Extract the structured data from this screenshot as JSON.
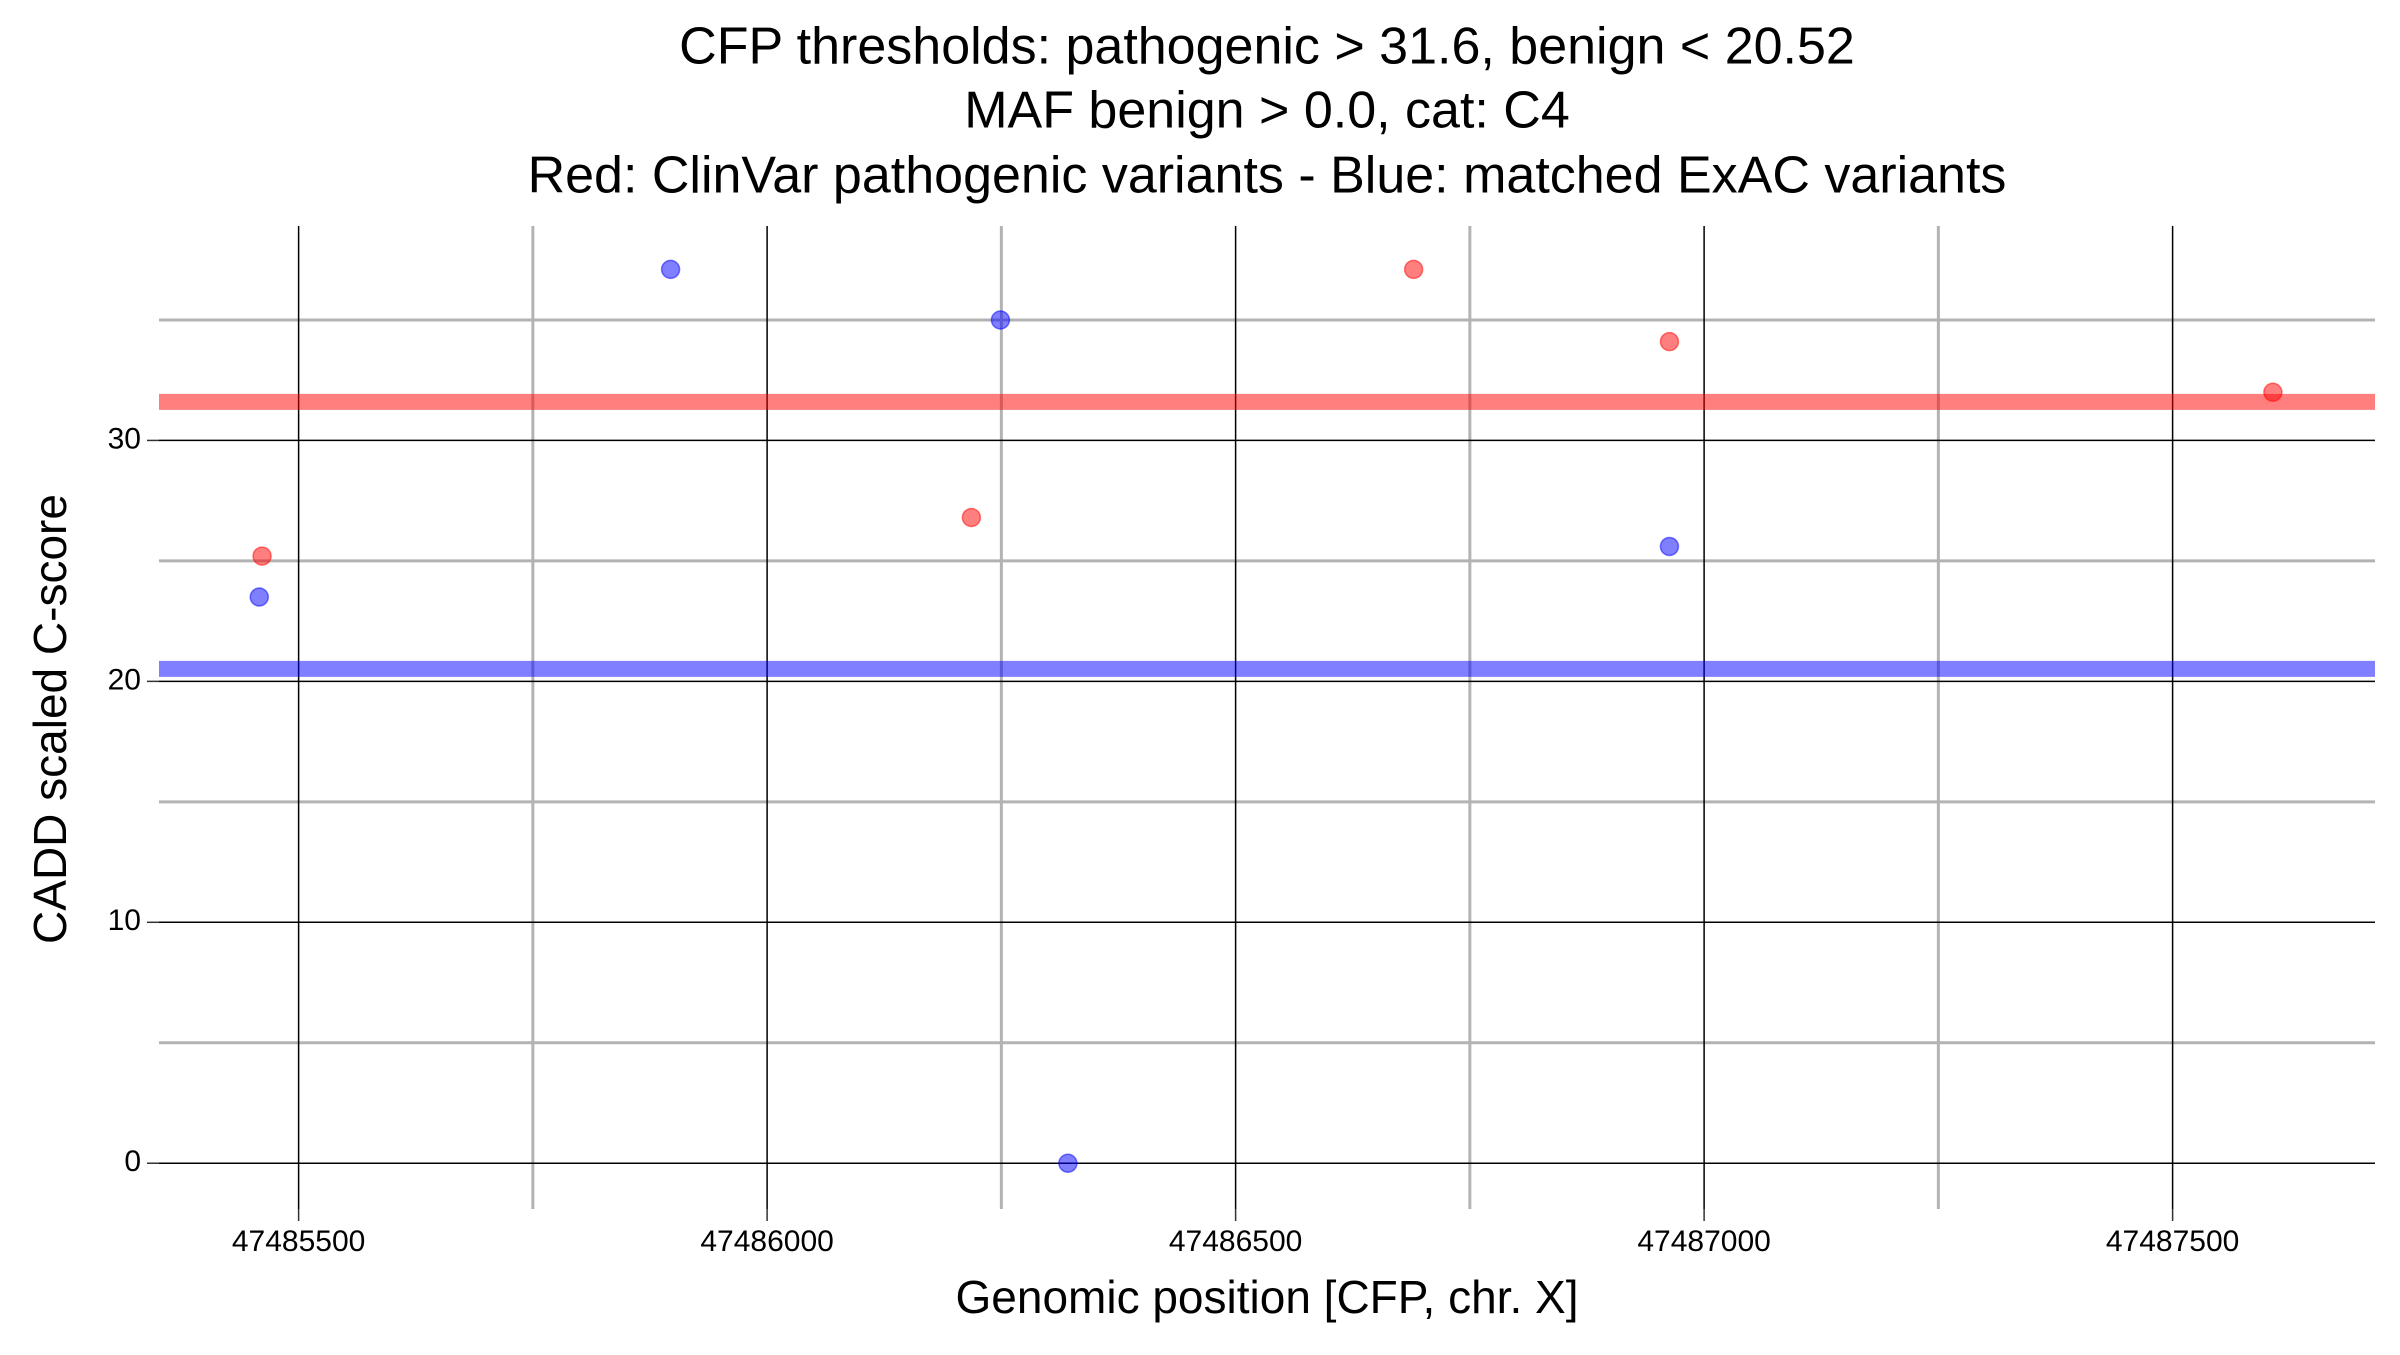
{
  "chart_data": {
    "type": "scatter",
    "title": [
      "CFP thresholds: pathogenic > 31.6, benign < 20.52",
      "MAF benign > 0.0, cat: C4",
      "Red: ClinVar pathogenic variants - Blue: matched ExAC variants"
    ],
    "x_label": "Genomic position [CFP, chr. X]",
    "y_label": "CADD scaled C-score",
    "xlim": [
      47485351,
      47487716
    ],
    "ylim": [
      -1.9,
      38.9
    ],
    "xticks": [
      47485500,
      47486000,
      47486500,
      47487000,
      47487500
    ],
    "yticks": [
      0,
      10,
      20,
      30
    ],
    "x_minor_ticks": [
      47485750,
      47486250,
      47486750,
      47487250
    ],
    "y_minor_ticks": [
      5,
      15,
      25,
      35
    ],
    "grid": true,
    "hlines": [
      {
        "value": 31.6,
        "color": "#ff0000"
      },
      {
        "value": 20.52,
        "color": "#0000ff"
      }
    ],
    "series": [
      {
        "color": "#ff0000",
        "x": [
          47485461,
          47486218,
          47486690,
          47486963,
          47487607
        ],
        "values": [
          25.2,
          26.8,
          37.1,
          34.1,
          32.0
        ]
      },
      {
        "color": "#0000ff",
        "x": [
          47485458,
          47485897,
          47486249,
          47486321,
          47486963
        ],
        "values": [
          23.5,
          37.1,
          35.0,
          0,
          25.6
        ]
      }
    ]
  }
}
